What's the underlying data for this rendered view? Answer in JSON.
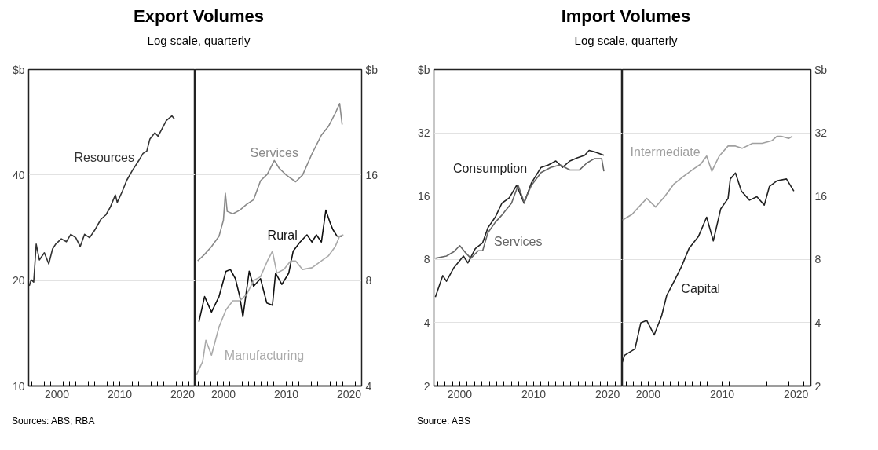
{
  "chart_data": [
    {
      "type": "line",
      "title": "Export Volumes",
      "subtitle": "Log scale, quarterly",
      "ylabel": "$b",
      "annotations": [
        "Sources: ABS; RBA"
      ],
      "log": "y",
      "grid": "y",
      "xlim": [
        1995.5,
        2022
      ],
      "ylim": [
        10,
        80
      ],
      "yticks": [
        10,
        20,
        40
      ],
      "xticks": [
        {
          "value": 1996,
          "label": null
        },
        {
          "value": 1997,
          "label": null
        },
        {
          "value": 1998,
          "label": null
        },
        {
          "value": 1999,
          "label": null
        },
        2000,
        {
          "value": 2001,
          "label": null
        },
        {
          "value": 2002,
          "label": null
        },
        {
          "value": 2003,
          "label": null
        },
        {
          "value": 2004,
          "label": null
        },
        {
          "value": 2005,
          "label": null
        },
        {
          "value": 2006,
          "label": null
        },
        {
          "value": 2007,
          "label": null
        },
        {
          "value": 2008,
          "label": null
        },
        {
          "value": 2009,
          "label": null
        },
        2010,
        {
          "value": 2011,
          "label": null
        },
        {
          "value": 2012,
          "label": null
        },
        {
          "value": 2013,
          "label": null
        },
        {
          "value": 2014,
          "label": null
        },
        {
          "value": 2015,
          "label": null
        },
        {
          "value": 2016,
          "label": null
        },
        {
          "value": 2017,
          "label": null
        },
        {
          "value": 2018,
          "label": null
        },
        {
          "value": 2019,
          "label": null
        },
        2020,
        {
          "value": 2021,
          "label": null
        }
      ],
      "series": [
        {
          "name": "Resources",
          "color": "#333333",
          "x": [
            1995.6,
            1995.9,
            1996.3,
            1996.7,
            1997.2,
            1998.0,
            1998.7,
            1999.3,
            1999.8,
            2000.7,
            2001.5,
            2002.2,
            2003.0,
            2003.7,
            2004.4,
            2005.2,
            2006.1,
            2007.0,
            2007.8,
            2008.5,
            2009.3,
            2009.6,
            2010.4,
            2011.1,
            2012.0,
            2013.0,
            2013.7,
            2014.3,
            2014.8,
            2015.6,
            2016.1,
            2016.7,
            2017.4,
            2018.1,
            2018.3,
            2018.7
          ],
          "values": [
            19.3,
            20.1,
            19.8,
            25.4,
            22.9,
            24.0,
            22.3,
            24.6,
            25.4,
            26.3,
            25.8,
            27.1,
            26.5,
            25.0,
            27.1,
            26.5,
            28.0,
            29.9,
            30.8,
            32.4,
            35.1,
            33.4,
            35.9,
            38.6,
            41.2,
            43.9,
            46.1,
            46.8,
            50.7,
            52.8,
            51.6,
            54.1,
            57.2,
            58.6,
            59.0,
            57.8
          ]
        }
      ]
    },
    {
      "type": "line",
      "log": "y2",
      "grid": "y",
      "y2label": "$b",
      "xlim": [
        1995.5,
        2022
      ],
      "y2lim": [
        4,
        32
      ],
      "y2ticks": [
        4,
        8,
        16
      ],
      "xticks": [
        {
          "value": 1996,
          "label": null
        },
        {
          "value": 1997,
          "label": null
        },
        {
          "value": 1998,
          "label": null
        },
        {
          "value": 1999,
          "label": null
        },
        2000,
        {
          "value": 2001,
          "label": null
        },
        {
          "value": 2002,
          "label": null
        },
        {
          "value": 2003,
          "label": null
        },
        {
          "value": 2004,
          "label": null
        },
        {
          "value": 2005,
          "label": null
        },
        {
          "value": 2006,
          "label": null
        },
        {
          "value": 2007,
          "label": null
        },
        {
          "value": 2008,
          "label": null
        },
        {
          "value": 2009,
          "label": null
        },
        2010,
        {
          "value": 2011,
          "label": null
        },
        {
          "value": 2012,
          "label": null
        },
        {
          "value": 2013,
          "label": null
        },
        {
          "value": 2014,
          "label": null
        },
        {
          "value": 2015,
          "label": null
        },
        {
          "value": 2016,
          "label": null
        },
        {
          "value": 2017,
          "label": null
        },
        {
          "value": 2018,
          "label": null
        },
        {
          "value": 2019,
          "label": null
        },
        2020,
        {
          "value": 2021,
          "label": null
        }
      ],
      "series": [
        {
          "name": "Services",
          "color": "#8a8a8a",
          "axis": "y2",
          "x": [
            1995.9,
            1997.0,
            1998.1,
            1999.3,
            2000.0,
            2000.3,
            2000.6,
            2001.5,
            2002.6,
            2003.7,
            2004.8,
            2005.9,
            2007.0,
            2008.1,
            2008.9,
            2010.0,
            2011.5,
            2012.6,
            2014.1,
            2015.6,
            2016.7,
            2017.8,
            2018.5,
            2018.9
          ],
          "values": [
            9.1,
            9.5,
            10.0,
            10.7,
            11.9,
            14.2,
            12.6,
            12.4,
            12.7,
            13.2,
            13.6,
            15.4,
            16.1,
            17.6,
            16.7,
            16.0,
            15.3,
            16.0,
            18.4,
            20.8,
            22.0,
            24.0,
            25.6,
            22.3
          ]
        },
        {
          "name": "Rural",
          "color": "#111111",
          "axis": "y2",
          "x": [
            1996.1,
            1997.0,
            1998.1,
            1999.3,
            2000.4,
            2001.1,
            2001.9,
            2002.6,
            2003.1,
            2004.1,
            2004.8,
            2005.9,
            2006.9,
            2007.8,
            2008.3,
            2009.3,
            2010.4,
            2011.1,
            2012.2,
            2013.3,
            2014.1,
            2014.8,
            2015.6,
            2016.3,
            2016.9,
            2017.4,
            2018.1,
            2018.9
          ],
          "values": [
            6.1,
            7.2,
            6.5,
            7.2,
            8.5,
            8.6,
            8.1,
            7.2,
            6.3,
            8.5,
            7.7,
            8.1,
            6.9,
            6.8,
            8.4,
            7.8,
            8.4,
            9.7,
            10.3,
            10.8,
            10.3,
            10.8,
            10.3,
            12.7,
            11.8,
            11.2,
            10.7,
            10.7
          ]
        },
        {
          "name": "Manufacturing",
          "color": "#aaaaaa",
          "axis": "y2",
          "x": [
            1995.7,
            1996.7,
            1997.2,
            1998.1,
            1999.3,
            2000.4,
            2001.5,
            2002.6,
            2003.7,
            2004.8,
            2005.9,
            2007.0,
            2007.8,
            2008.5,
            2009.6,
            2010.7,
            2011.5,
            2012.6,
            2014.1,
            2015.6,
            2016.7,
            2017.8,
            2018.5,
            2019.1
          ],
          "values": [
            4.3,
            4.7,
            5.4,
            4.9,
            5.9,
            6.6,
            7.0,
            7.0,
            7.3,
            8.0,
            8.2,
            9.1,
            9.7,
            8.4,
            8.6,
            9.1,
            9.1,
            8.6,
            8.7,
            9.1,
            9.4,
            10.0,
            10.7,
            10.8
          ]
        }
      ]
    },
    {
      "type": "line",
      "title": "Import Volumes",
      "subtitle": "Log scale, quarterly",
      "ylabel": "$b",
      "annotations": [
        "Source: ABS"
      ],
      "log": "y",
      "grid": "y",
      "xlim": [
        1996.5,
        2022
      ],
      "ylim": [
        2,
        64
      ],
      "yticks": [
        2,
        4,
        8,
        16,
        32
      ],
      "xticks": [
        {
          "value": 1997,
          "label": null
        },
        {
          "value": 1998,
          "label": null
        },
        {
          "value": 1999,
          "label": null
        },
        2000,
        {
          "value": 2001,
          "label": null
        },
        {
          "value": 2002,
          "label": null
        },
        {
          "value": 2003,
          "label": null
        },
        {
          "value": 2004,
          "label": null
        },
        {
          "value": 2005,
          "label": null
        },
        {
          "value": 2006,
          "label": null
        },
        {
          "value": 2007,
          "label": null
        },
        {
          "value": 2008,
          "label": null
        },
        {
          "value": 2009,
          "label": null
        },
        2010,
        {
          "value": 2011,
          "label": null
        },
        {
          "value": 2012,
          "label": null
        },
        {
          "value": 2013,
          "label": null
        },
        {
          "value": 2014,
          "label": null
        },
        {
          "value": 2015,
          "label": null
        },
        {
          "value": 2016,
          "label": null
        },
        {
          "value": 2017,
          "label": null
        },
        {
          "value": 2018,
          "label": null
        },
        {
          "value": 2019,
          "label": null
        },
        2020,
        {
          "value": 2021,
          "label": null
        }
      ],
      "series": [
        {
          "name": "Consumption",
          "color": "#222222",
          "x": [
            1996.7,
            1997.7,
            1998.2,
            1999.2,
            2000.5,
            2001.1,
            2002.1,
            2003.1,
            2003.8,
            2004.8,
            2005.7,
            2006.7,
            2007.7,
            2008.7,
            2009.7,
            2011.0,
            2012.0,
            2013.0,
            2013.9,
            2014.9,
            2015.9,
            2016.9,
            2017.5,
            2018.5,
            2019.5
          ],
          "values": [
            5.3,
            6.7,
            6.3,
            7.3,
            8.3,
            7.7,
            9.0,
            9.6,
            11.3,
            12.7,
            14.8,
            15.7,
            18.0,
            14.8,
            18.5,
            21.9,
            22.5,
            23.5,
            21.9,
            23.5,
            24.3,
            25.0,
            26.4,
            25.8,
            25.0
          ]
        },
        {
          "name": "Services",
          "color": "#666666",
          "x": [
            1996.7,
            1998.2,
            1999.2,
            2000.0,
            2000.8,
            2001.5,
            2002.5,
            2003.1,
            2003.8,
            2004.8,
            2005.7,
            2007.0,
            2007.9,
            2008.7,
            2009.7,
            2011.0,
            2012.3,
            2013.6,
            2014.9,
            2016.2,
            2017.2,
            2018.2,
            2019.2,
            2019.5
          ],
          "values": [
            8.1,
            8.3,
            8.7,
            9.3,
            8.6,
            8.1,
            8.8,
            8.8,
            10.7,
            12.0,
            13.0,
            14.8,
            18.0,
            15.0,
            18.0,
            20.7,
            21.9,
            22.5,
            21.3,
            21.3,
            23.0,
            24.1,
            24.1,
            21.0
          ]
        }
      ]
    },
    {
      "type": "line",
      "log": "y2",
      "grid": "y",
      "y2label": "$b",
      "xlim": [
        1996.5,
        2022
      ],
      "y2lim": [
        2,
        64
      ],
      "y2ticks": [
        2,
        4,
        8,
        16,
        32
      ],
      "xticks": [
        {
          "value": 1997,
          "label": null
        },
        {
          "value": 1998,
          "label": null
        },
        {
          "value": 1999,
          "label": null
        },
        2000,
        {
          "value": 2001,
          "label": null
        },
        {
          "value": 2002,
          "label": null
        },
        {
          "value": 2003,
          "label": null
        },
        {
          "value": 2004,
          "label": null
        },
        {
          "value": 2005,
          "label": null
        },
        {
          "value": 2006,
          "label": null
        },
        {
          "value": 2007,
          "label": null
        },
        {
          "value": 2008,
          "label": null
        },
        {
          "value": 2009,
          "label": null
        },
        2010,
        {
          "value": 2011,
          "label": null
        },
        {
          "value": 2012,
          "label": null
        },
        {
          "value": 2013,
          "label": null
        },
        {
          "value": 2014,
          "label": null
        },
        {
          "value": 2015,
          "label": null
        },
        {
          "value": 2016,
          "label": null
        },
        {
          "value": 2017,
          "label": null
        },
        {
          "value": 2018,
          "label": null
        },
        {
          "value": 2019,
          "label": null
        },
        2020,
        {
          "value": 2021,
          "label": null
        }
      ],
      "series": [
        {
          "name": "Intermediate",
          "color": "#a0a0a0",
          "axis": "y2",
          "x": [
            1996.5,
            1997.8,
            1998.8,
            1999.8,
            2001.0,
            2002.2,
            2003.5,
            2004.8,
            2006.1,
            2007.1,
            2007.9,
            2008.6,
            2009.6,
            2010.8,
            2011.8,
            2012.7,
            2014.1,
            2015.4,
            2016.7,
            2017.4,
            2018.0,
            2019.0,
            2019.5
          ],
          "values": [
            12.3,
            13.1,
            14.3,
            15.6,
            14.2,
            15.9,
            18.3,
            19.9,
            21.5,
            22.7,
            24.8,
            21.0,
            24.8,
            27.7,
            27.7,
            27.0,
            28.5,
            28.5,
            29.3,
            30.8,
            30.8,
            30.1,
            30.8
          ]
        },
        {
          "name": "Capital",
          "color": "#222222",
          "axis": "y2",
          "x": [
            1996.5,
            1996.8,
            1998.2,
            1999.0,
            1999.8,
            2000.8,
            2001.8,
            2002.5,
            2003.5,
            2004.5,
            2005.5,
            2006.8,
            2007.9,
            2008.8,
            2009.8,
            2010.8,
            2011.1,
            2011.8,
            2012.6,
            2013.7,
            2014.7,
            2015.7,
            2016.4,
            2017.4,
            2018.7,
            2019.7
          ],
          "values": [
            2.6,
            2.8,
            3.0,
            4.0,
            4.1,
            3.5,
            4.3,
            5.4,
            6.3,
            7.4,
            9.0,
            10.3,
            12.7,
            9.8,
            13.9,
            15.6,
            19.3,
            20.6,
            16.9,
            15.3,
            15.9,
            14.5,
            17.8,
            18.9,
            19.3,
            16.9
          ]
        }
      ]
    }
  ]
}
